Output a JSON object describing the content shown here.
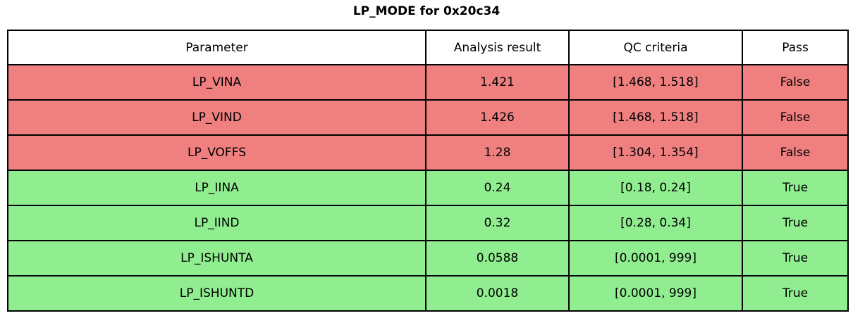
{
  "title": "LP_MODE for 0x20c34",
  "chart_data": {
    "type": "table",
    "title": "LP_MODE for 0x20c34",
    "columns": [
      "Parameter",
      "Analysis result",
      "QC criteria",
      "Pass"
    ],
    "rows": [
      {
        "parameter": "LP_VINA",
        "analysis_result": "1.421",
        "qc_criteria": "[1.468, 1.518]",
        "pass": "False",
        "status": "fail"
      },
      {
        "parameter": "LP_VIND",
        "analysis_result": "1.426",
        "qc_criteria": "[1.468, 1.518]",
        "pass": "False",
        "status": "fail"
      },
      {
        "parameter": "LP_VOFFS",
        "analysis_result": "1.28",
        "qc_criteria": "[1.304, 1.354]",
        "pass": "False",
        "status": "fail"
      },
      {
        "parameter": "LP_IINA",
        "analysis_result": "0.24",
        "qc_criteria": "[0.18, 0.24]",
        "pass": "True",
        "status": "pass"
      },
      {
        "parameter": "LP_IIND",
        "analysis_result": "0.32",
        "qc_criteria": "[0.28, 0.34]",
        "pass": "True",
        "status": "pass"
      },
      {
        "parameter": "LP_ISHUNTA",
        "analysis_result": "0.0588",
        "qc_criteria": "[0.0001, 999]",
        "pass": "True",
        "status": "pass"
      },
      {
        "parameter": "LP_ISHUNTD",
        "analysis_result": "0.0018",
        "qc_criteria": "[0.0001, 999]",
        "pass": "True",
        "status": "pass"
      }
    ],
    "colors": {
      "fail_row": "#f08080",
      "pass_row": "#90ee90",
      "header_bg": "#ffffff",
      "border": "#000000",
      "text": "#000000"
    },
    "layout": {
      "grid": "on",
      "legend": "none"
    }
  }
}
